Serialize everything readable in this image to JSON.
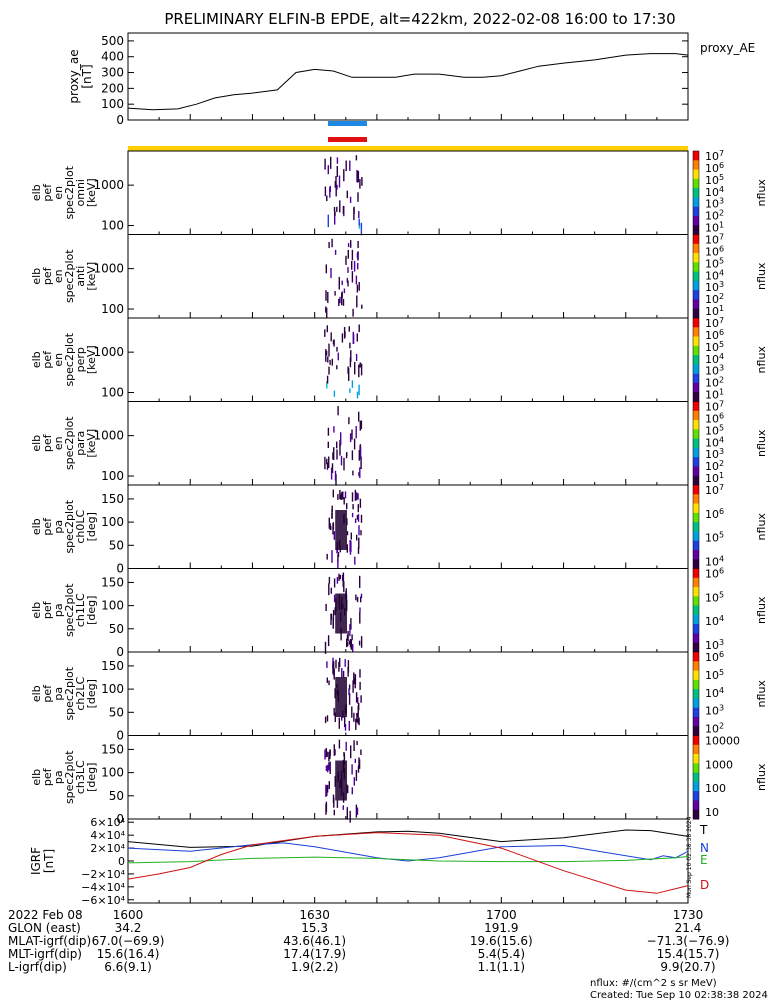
{
  "title": "PRELIMINARY ELFIN-B EPDE, alt=422km, 2022-02-08 16:00 to 17:30",
  "colors": {
    "fg": "#000000",
    "bar_blue": "#1e88e5",
    "bar_red": "#e01010",
    "bar_yellow": "#ffd000",
    "B_T": "#000000",
    "B_N": "#1a3fd8",
    "B_E": "#22b022",
    "B_D": "#d01010"
  },
  "chart_data": [
    {
      "type": "line",
      "name": "proxy_ae",
      "ylabel": [
        "proxy_ae",
        "[nT]"
      ],
      "legend": "proxy_AE",
      "ylim": [
        0,
        550
      ],
      "yticks": [
        "500",
        "400",
        "300",
        "200",
        "100",
        "0"
      ],
      "ytick_values": [
        500,
        400,
        300,
        200,
        100,
        0
      ],
      "xlim": [
        0,
        90
      ],
      "x": [
        0,
        4,
        8,
        11,
        14,
        17,
        20,
        24,
        27,
        30,
        33,
        36,
        39,
        43,
        46,
        50,
        54,
        57,
        60,
        63,
        66,
        70,
        75,
        80,
        84,
        88,
        90
      ],
      "y": [
        75,
        65,
        70,
        100,
        140,
        160,
        170,
        190,
        300,
        320,
        310,
        270,
        270,
        270,
        290,
        290,
        270,
        270,
        280,
        310,
        340,
        360,
        380,
        410,
        420,
        420,
        410
      ]
    },
    {
      "type": "heatmap",
      "panels": [
        {
          "name": "spec-omni",
          "ylabel": [
            "elb",
            "pef",
            "en",
            "spec2plot",
            "omni",
            "[keV]"
          ],
          "yticks": [
            "1000",
            "100"
          ],
          "ytick_values": [
            1000,
            100
          ],
          "ylim": [
            60,
            7000
          ],
          "log": true,
          "colorbar": [
            "10^7",
            "10^6",
            "10^5",
            "10^4",
            "10^3",
            "10^2",
            "10^1"
          ],
          "cbar_label": "nflux"
        },
        {
          "name": "spec-anti",
          "ylabel": [
            "elb",
            "pef",
            "en",
            "spec2plot",
            "anti",
            "[keV]"
          ],
          "yticks": [
            "1000",
            "100"
          ],
          "ytick_values": [
            1000,
            100
          ],
          "ylim": [
            60,
            7000
          ],
          "log": true,
          "colorbar": [
            "10^7",
            "10^6",
            "10^5",
            "10^4",
            "10^3",
            "10^2",
            "10^1"
          ],
          "cbar_label": "nflux"
        },
        {
          "name": "spec-perp",
          "ylabel": [
            "elb",
            "pef",
            "en",
            "spec2plot",
            "perp",
            "[keV]"
          ],
          "yticks": [
            "1000",
            "100"
          ],
          "ytick_values": [
            1000,
            100
          ],
          "ylim": [
            60,
            7000
          ],
          "log": true,
          "colorbar": [
            "10^7",
            "10^6",
            "10^5",
            "10^4",
            "10^3",
            "10^2",
            "10^1"
          ],
          "cbar_label": "nflux"
        },
        {
          "name": "spec-para",
          "ylabel": [
            "elb",
            "pef",
            "en",
            "spec2plot",
            "para",
            "[keV]"
          ],
          "yticks": [
            "1000",
            "100"
          ],
          "ytick_values": [
            1000,
            100
          ],
          "ylim": [
            60,
            7000
          ],
          "log": true,
          "colorbar": [
            "10^7",
            "10^6",
            "10^5",
            "10^4",
            "10^3",
            "10^2",
            "10^1"
          ],
          "cbar_label": "nflux"
        },
        {
          "name": "pa-ch0LC",
          "ylabel": [
            "elb",
            "pef",
            "pa",
            "spec2plot",
            "ch0LC",
            "[deg]"
          ],
          "yticks": [
            "150",
            "100",
            "50",
            "0"
          ],
          "ytick_values": [
            150,
            100,
            50,
            0
          ],
          "ylim": [
            0,
            180
          ],
          "log": false,
          "colorbar": [
            "10^7",
            "10^6",
            "10^5",
            "10^4"
          ],
          "cbar_label": "nflux"
        },
        {
          "name": "pa-ch1LC",
          "ylabel": [
            "elb",
            "pef",
            "pa",
            "spec2plot",
            "ch1LC",
            "[deg]"
          ],
          "yticks": [
            "150",
            "100",
            "50",
            "0"
          ],
          "ytick_values": [
            150,
            100,
            50,
            0
          ],
          "ylim": [
            0,
            180
          ],
          "log": false,
          "colorbar": [
            "10^6",
            "10^5",
            "10^4",
            "10^3"
          ],
          "cbar_label": "nflux"
        },
        {
          "name": "pa-ch2LC",
          "ylabel": [
            "elb",
            "pef",
            "pa",
            "spec2plot",
            "ch2LC",
            "[deg]"
          ],
          "yticks": [
            "150",
            "100",
            "50",
            "0"
          ],
          "ytick_values": [
            150,
            100,
            50,
            0
          ],
          "ylim": [
            0,
            180
          ],
          "log": false,
          "colorbar": [
            "10^6",
            "10^5",
            "10^4",
            "10^3",
            "10^2"
          ],
          "cbar_label": "nflux"
        },
        {
          "name": "pa-ch3LC",
          "ylabel": [
            "elb",
            "pef",
            "pa",
            "spec2plot",
            "ch3LC",
            "[deg]"
          ],
          "yticks": [
            "150",
            "100",
            "50",
            "0"
          ],
          "ytick_values": [
            150,
            100,
            50,
            0
          ],
          "ylim": [
            0,
            180
          ],
          "log": false,
          "colorbar": [
            "10000",
            "1000",
            "100",
            "10"
          ],
          "cbar_label": "nflux"
        }
      ]
    },
    {
      "type": "line",
      "name": "igrf",
      "ylabel": [
        "IGRF",
        "[nT]"
      ],
      "yticks": [
        "6×10⁴",
        "4×10⁴",
        "2×10⁴",
        "0",
        "−2×10⁴",
        "−4×10⁴",
        "−6×10⁴"
      ],
      "ytick_values": [
        60000,
        40000,
        20000,
        0,
        -20000,
        -40000,
        -60000
      ],
      "ylim": [
        -65000,
        65000
      ],
      "xlim": [
        0,
        90
      ],
      "series": [
        {
          "name": "T",
          "x": [
            0,
            10,
            20,
            30,
            40,
            45,
            50,
            60,
            70,
            80,
            84,
            90
          ],
          "y": [
            30000,
            21000,
            23000,
            38000,
            45000,
            46000,
            43000,
            30000,
            36000,
            48000,
            47000,
            38000
          ]
        },
        {
          "name": "N",
          "x": [
            0,
            10,
            20,
            25,
            30,
            40,
            45,
            50,
            60,
            70,
            80,
            84,
            86,
            88,
            90
          ],
          "y": [
            20000,
            15000,
            25000,
            28000,
            22000,
            5000,
            0,
            5000,
            22000,
            24000,
            8000,
            2000,
            8000,
            5000,
            15000
          ]
        },
        {
          "name": "E",
          "x": [
            0,
            10,
            20,
            30,
            40,
            50,
            60,
            70,
            80,
            88,
            90
          ],
          "y": [
            -3000,
            -1000,
            4000,
            6000,
            4000,
            0,
            -1000,
            -1000,
            1000,
            5000,
            7000
          ]
        },
        {
          "name": "D",
          "x": [
            0,
            5,
            10,
            15,
            20,
            30,
            40,
            50,
            60,
            70,
            80,
            85,
            90
          ],
          "y": [
            -28000,
            -20000,
            -10000,
            10000,
            25000,
            38000,
            44000,
            40000,
            20000,
            -15000,
            -45000,
            -50000,
            -38000
          ]
        }
      ]
    }
  ],
  "time_axis": {
    "date_label": "2022 Feb 08",
    "ticks": [
      {
        "t": 0,
        "label": "1600"
      },
      {
        "t": 30,
        "label": "1630"
      },
      {
        "t": 60,
        "label": "1700"
      },
      {
        "t": 90,
        "label": "1730"
      }
    ]
  },
  "ephemeris": [
    {
      "label": "GLON (east)",
      "values": [
        "34.2",
        "15.3",
        "191.9",
        "21.4"
      ]
    },
    {
      "label": "MLAT-igrf(dip)",
      "values": [
        "67.0(−69.9)",
        "43.6(46.1)",
        "19.6(15.6)",
        "−71.3(−76.9)"
      ]
    },
    {
      "label": "MLT-igrf(dip)",
      "values": [
        "15.6(16.4)",
        "17.4(17.9)",
        "5.4(5.4)",
        "15.4(15.7)"
      ]
    },
    {
      "label": "L-igrf(dip)",
      "values": [
        "6.6(9.1)",
        "1.9(2.2)",
        "1.1(1.1)",
        "9.9(20.7)"
      ]
    }
  ],
  "footer": {
    "units": "nflux: #/(cm^2 s sr MeV)",
    "created": "Created: Tue Sep 10 02:38:38 2024",
    "side_stamp": "Mon Sep 10 02:38:38 2024"
  }
}
